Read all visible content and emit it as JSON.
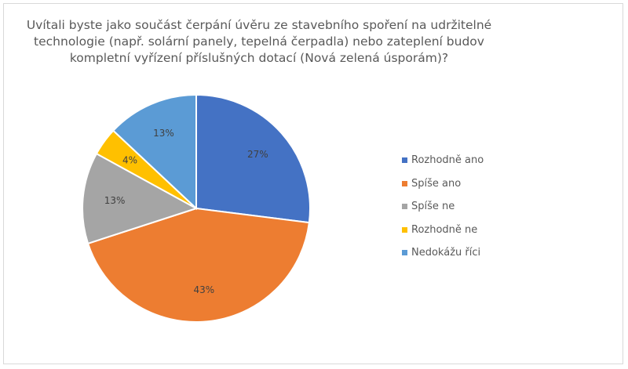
{
  "chart_data": {
    "type": "pie",
    "title_lines": [
      "Uvítali byste jako součást čerpání úvěru ze stavebního spoření na udržitelné",
      "technologie (např. solární panely, tepelná čerpadla) nebo zateplení budov",
      "kompletní vyřízení příslušných dotací (Nová zelená úsporám)?"
    ],
    "categories": [
      "Rozhodně ano",
      "Spíše ano",
      "Spíše ne",
      "Rozhodně ne",
      "Nedokážu říci"
    ],
    "values": [
      27,
      43,
      13,
      4,
      13
    ],
    "data_labels": [
      "27%",
      "43%",
      "13%",
      "4%",
      "13%"
    ],
    "colors": [
      "#4472C4",
      "#ED7D31",
      "#A5A5A5",
      "#FFC000",
      "#5B9BD5"
    ],
    "legend_position": "right"
  }
}
